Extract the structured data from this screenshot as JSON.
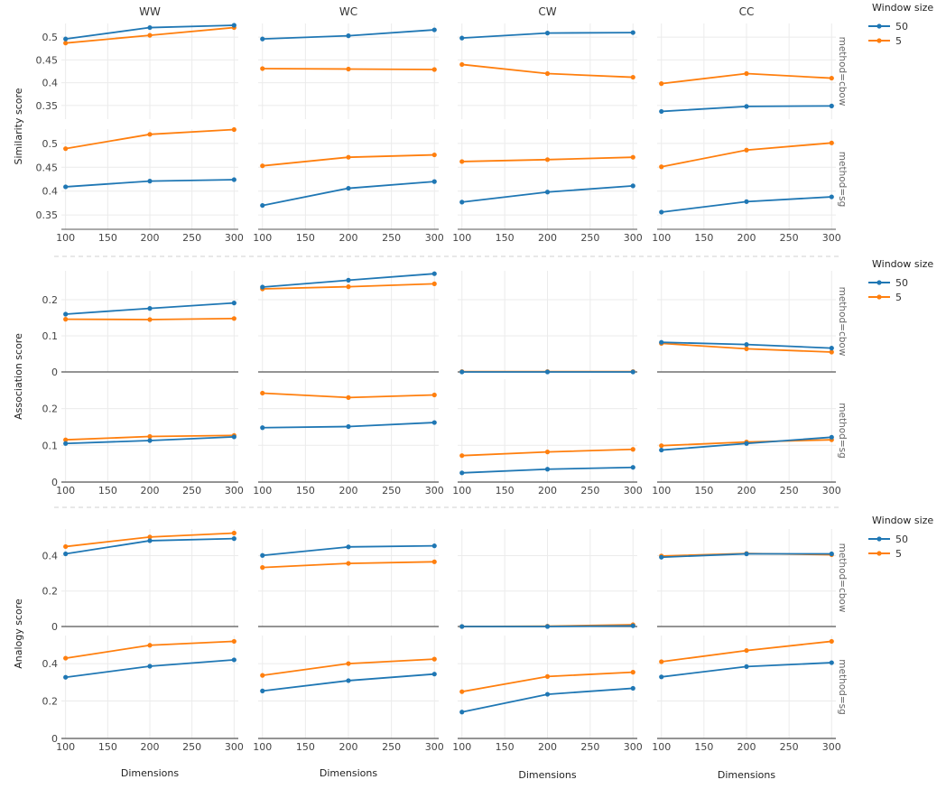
{
  "chart_data": {
    "type": "line",
    "columns": [
      "WW",
      "WC",
      "CW",
      "CC"
    ],
    "x": [
      100,
      200,
      300
    ],
    "x_ticks": [
      100,
      150,
      200,
      250,
      300
    ],
    "xlabel": "Dimensions",
    "legend": {
      "title": "Window size",
      "entries": [
        {
          "label": "50",
          "color": "#1f77b4"
        },
        {
          "label": "5",
          "color": "#ff7f0e"
        }
      ]
    },
    "facet_rows": [
      "method=cbow",
      "method=sg"
    ],
    "metrics": [
      {
        "ylabel": "Similarity score",
        "ylim": [
          0.32,
          0.53
        ],
        "yticks": [
          {
            "v": 0.35,
            "label": "0.35"
          },
          {
            "v": 0.4,
            "label": "0.4"
          },
          {
            "v": 0.45,
            "label": "0.45"
          },
          {
            "v": 0.5,
            "label": "0.5"
          }
        ],
        "zero_line": false,
        "rows": [
          {
            "method": "method=cbow",
            "panels": [
              {
                "series": [
                  {
                    "name": "50",
                    "values": [
                      0.496,
                      0.521,
                      0.526
                    ]
                  },
                  {
                    "name": "5",
                    "values": [
                      0.487,
                      0.504,
                      0.521
                    ]
                  }
                ]
              },
              {
                "series": [
                  {
                    "name": "50",
                    "values": [
                      0.496,
                      0.503,
                      0.516
                    ]
                  },
                  {
                    "name": "5",
                    "values": [
                      0.431,
                      0.43,
                      0.429
                    ]
                  }
                ]
              },
              {
                "series": [
                  {
                    "name": "50",
                    "values": [
                      0.498,
                      0.509,
                      0.51
                    ]
                  },
                  {
                    "name": "5",
                    "values": [
                      0.44,
                      0.42,
                      0.412
                    ]
                  }
                ]
              },
              {
                "series": [
                  {
                    "name": "50",
                    "values": [
                      0.337,
                      0.348,
                      0.349
                    ]
                  },
                  {
                    "name": "5",
                    "values": [
                      0.398,
                      0.42,
                      0.41
                    ]
                  }
                ]
              }
            ]
          },
          {
            "method": "method=sg",
            "panels": [
              {
                "series": [
                  {
                    "name": "50",
                    "values": [
                      0.409,
                      0.421,
                      0.424
                    ]
                  },
                  {
                    "name": "5",
                    "values": [
                      0.489,
                      0.519,
                      0.529
                    ]
                  }
                ]
              },
              {
                "series": [
                  {
                    "name": "50",
                    "values": [
                      0.37,
                      0.406,
                      0.42
                    ]
                  },
                  {
                    "name": "5",
                    "values": [
                      0.453,
                      0.471,
                      0.476
                    ]
                  }
                ]
              },
              {
                "series": [
                  {
                    "name": "50",
                    "values": [
                      0.377,
                      0.398,
                      0.411
                    ]
                  },
                  {
                    "name": "5",
                    "values": [
                      0.462,
                      0.466,
                      0.471
                    ]
                  }
                ]
              },
              {
                "series": [
                  {
                    "name": "50",
                    "values": [
                      0.356,
                      0.378,
                      0.388
                    ]
                  },
                  {
                    "name": "5",
                    "values": [
                      0.451,
                      0.486,
                      0.501
                    ]
                  }
                ]
              }
            ]
          }
        ]
      },
      {
        "ylabel": "Association score",
        "ylim": [
          0,
          0.28
        ],
        "yticks": [
          {
            "v": 0,
            "label": "0"
          },
          {
            "v": 0.1,
            "label": "0.1"
          },
          {
            "v": 0.2,
            "label": "0.2"
          }
        ],
        "zero_line": true,
        "rows": [
          {
            "method": "method=cbow",
            "panels": [
              {
                "series": [
                  {
                    "name": "50",
                    "values": [
                      0.16,
                      0.176,
                      0.191
                    ]
                  },
                  {
                    "name": "5",
                    "values": [
                      0.146,
                      0.145,
                      0.148
                    ]
                  }
                ]
              },
              {
                "series": [
                  {
                    "name": "50",
                    "values": [
                      0.235,
                      0.254,
                      0.272
                    ]
                  },
                  {
                    "name": "5",
                    "values": [
                      0.23,
                      0.236,
                      0.244
                    ]
                  }
                ]
              },
              {
                "series": [
                  {
                    "name": "50",
                    "values": [
                      0.0,
                      0.0,
                      0.0
                    ]
                  },
                  {
                    "name": "5",
                    "values": [
                      0.001,
                      0.001,
                      0.001
                    ]
                  }
                ]
              },
              {
                "series": [
                  {
                    "name": "50",
                    "values": [
                      0.082,
                      0.076,
                      0.066
                    ]
                  },
                  {
                    "name": "5",
                    "values": [
                      0.079,
                      0.064,
                      0.055
                    ]
                  }
                ]
              }
            ]
          },
          {
            "method": "method=sg",
            "panels": [
              {
                "series": [
                  {
                    "name": "50",
                    "values": [
                      0.105,
                      0.113,
                      0.123
                    ]
                  },
                  {
                    "name": "5",
                    "values": [
                      0.115,
                      0.124,
                      0.127
                    ]
                  }
                ]
              },
              {
                "series": [
                  {
                    "name": "50",
                    "values": [
                      0.148,
                      0.151,
                      0.162
                    ]
                  },
                  {
                    "name": "5",
                    "values": [
                      0.242,
                      0.23,
                      0.237
                    ]
                  }
                ]
              },
              {
                "series": [
                  {
                    "name": "50",
                    "values": [
                      0.025,
                      0.035,
                      0.04
                    ]
                  },
                  {
                    "name": "5",
                    "values": [
                      0.072,
                      0.082,
                      0.089
                    ]
                  }
                ]
              },
              {
                "series": [
                  {
                    "name": "50",
                    "values": [
                      0.087,
                      0.105,
                      0.122
                    ]
                  },
                  {
                    "name": "5",
                    "values": [
                      0.099,
                      0.109,
                      0.115
                    ]
                  }
                ]
              }
            ]
          }
        ]
      },
      {
        "ylabel": "Analogy score",
        "ylim": [
          0,
          0.55
        ],
        "yticks": [
          {
            "v": 0,
            "label": "0"
          },
          {
            "v": 0.2,
            "label": "0.2"
          },
          {
            "v": 0.4,
            "label": "0.4"
          }
        ],
        "zero_line": true,
        "rows": [
          {
            "method": "method=cbow",
            "panels": [
              {
                "series": [
                  {
                    "name": "50",
                    "values": [
                      0.41,
                      0.484,
                      0.496
                    ]
                  },
                  {
                    "name": "5",
                    "values": [
                      0.451,
                      0.505,
                      0.527
                    ]
                  }
                ]
              },
              {
                "series": [
                  {
                    "name": "50",
                    "values": [
                      0.401,
                      0.449,
                      0.455
                    ]
                  },
                  {
                    "name": "5",
                    "values": [
                      0.333,
                      0.356,
                      0.365
                    ]
                  }
                ]
              },
              {
                "series": [
                  {
                    "name": "50",
                    "values": [
                      0.0,
                      0.0,
                      0.004
                    ]
                  },
                  {
                    "name": "5",
                    "values": [
                      0.0,
                      0.002,
                      0.01
                    ]
                  }
                ]
              },
              {
                "series": [
                  {
                    "name": "50",
                    "values": [
                      0.391,
                      0.41,
                      0.41
                    ]
                  },
                  {
                    "name": "5",
                    "values": [
                      0.398,
                      0.412,
                      0.405
                    ]
                  }
                ]
              }
            ]
          },
          {
            "method": "method=sg",
            "panels": [
              {
                "series": [
                  {
                    "name": "50",
                    "values": [
                      0.327,
                      0.386,
                      0.42
                    ]
                  },
                  {
                    "name": "5",
                    "values": [
                      0.429,
                      0.498,
                      0.519
                    ]
                  }
                ]
              },
              {
                "series": [
                  {
                    "name": "50",
                    "values": [
                      0.254,
                      0.309,
                      0.344
                    ]
                  },
                  {
                    "name": "5",
                    "values": [
                      0.337,
                      0.4,
                      0.424
                    ]
                  }
                ]
              },
              {
                "series": [
                  {
                    "name": "50",
                    "values": [
                      0.141,
                      0.236,
                      0.268
                    ]
                  },
                  {
                    "name": "5",
                    "values": [
                      0.25,
                      0.331,
                      0.354
                    ]
                  }
                ]
              },
              {
                "series": [
                  {
                    "name": "50",
                    "values": [
                      0.329,
                      0.384,
                      0.405
                    ]
                  },
                  {
                    "name": "5",
                    "values": [
                      0.41,
                      0.47,
                      0.519
                    ]
                  }
                ]
              }
            ]
          }
        ]
      }
    ]
  }
}
